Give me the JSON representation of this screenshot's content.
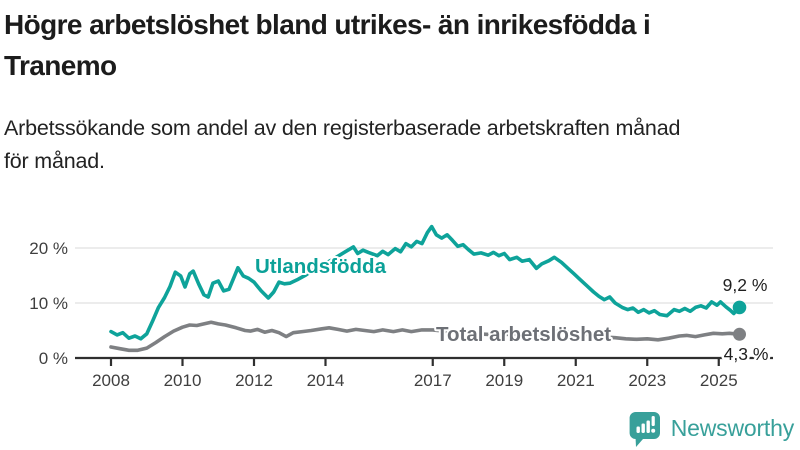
{
  "header": {
    "title_line1": "Högre arbetslöshet bland utrikes- än inrikesfödda i",
    "title_line2": "Tranemo",
    "subtitle_line1": "Arbetssökande som andel av den registerbaserade arbetskraften månad",
    "subtitle_line2": "för månad."
  },
  "chart_data": {
    "type": "line",
    "title": "Högre arbetslöshet bland utrikes- än inrikesfödda i Tranemo",
    "subtitle": "Arbetssökande som andel av den registerbaserade arbetskraften månad för månad.",
    "y_unit": "%",
    "xlim": [
      2007,
      2026
    ],
    "ylim": [
      0,
      25
    ],
    "grid": "horizontal",
    "legend_position": "inline-labels",
    "x_ticks": [
      2008,
      2010,
      2012,
      2014,
      2017,
      2019,
      2021,
      2023,
      2025
    ],
    "y_ticks": [
      {
        "value": 0,
        "label": "0 %"
      },
      {
        "value": 10,
        "label": "10 %"
      },
      {
        "value": 20,
        "label": "20 %"
      }
    ],
    "series": [
      {
        "name": "Utlandsfödda",
        "color": "#0ea39a",
        "label_color": "#0ba198",
        "end_label": "9,2 %",
        "end_value": 9.2,
        "points": [
          [
            2008.0,
            4.8
          ],
          [
            2008.17,
            4.2
          ],
          [
            2008.33,
            4.6
          ],
          [
            2008.5,
            3.6
          ],
          [
            2008.67,
            4.0
          ],
          [
            2008.83,
            3.5
          ],
          [
            2009.0,
            4.4
          ],
          [
            2009.17,
            6.8
          ],
          [
            2009.33,
            9.2
          ],
          [
            2009.5,
            11.0
          ],
          [
            2009.65,
            13.0
          ],
          [
            2009.8,
            15.6
          ],
          [
            2009.95,
            14.9
          ],
          [
            2010.07,
            12.9
          ],
          [
            2010.2,
            15.3
          ],
          [
            2010.3,
            15.8
          ],
          [
            2010.45,
            13.5
          ],
          [
            2010.6,
            11.5
          ],
          [
            2010.72,
            11.1
          ],
          [
            2010.85,
            13.6
          ],
          [
            2011.0,
            14.0
          ],
          [
            2011.15,
            12.2
          ],
          [
            2011.3,
            12.5
          ],
          [
            2011.45,
            14.8
          ],
          [
            2011.55,
            16.4
          ],
          [
            2011.7,
            14.9
          ],
          [
            2011.85,
            14.5
          ],
          [
            2012.0,
            13.8
          ],
          [
            2012.2,
            12.2
          ],
          [
            2012.4,
            10.9
          ],
          [
            2012.55,
            12.0
          ],
          [
            2012.7,
            13.8
          ],
          [
            2012.85,
            13.5
          ],
          [
            2013.0,
            13.6
          ],
          [
            2013.2,
            14.2
          ],
          [
            2013.45,
            15.1
          ],
          [
            2013.7,
            16.2
          ],
          [
            2014.0,
            17.2
          ],
          [
            2014.3,
            18.3
          ],
          [
            2014.55,
            19.3
          ],
          [
            2014.78,
            20.2
          ],
          [
            2014.9,
            19.0
          ],
          [
            2015.05,
            19.6
          ],
          [
            2015.2,
            19.2
          ],
          [
            2015.45,
            18.6
          ],
          [
            2015.6,
            19.4
          ],
          [
            2015.75,
            18.8
          ],
          [
            2015.95,
            19.9
          ],
          [
            2016.1,
            19.3
          ],
          [
            2016.25,
            20.8
          ],
          [
            2016.4,
            20.2
          ],
          [
            2016.55,
            21.2
          ],
          [
            2016.7,
            20.8
          ],
          [
            2016.85,
            22.8
          ],
          [
            2016.97,
            23.9
          ],
          [
            2017.1,
            22.4
          ],
          [
            2017.25,
            21.8
          ],
          [
            2017.4,
            22.4
          ],
          [
            2017.55,
            21.4
          ],
          [
            2017.7,
            20.3
          ],
          [
            2017.85,
            20.6
          ],
          [
            2018.0,
            19.7
          ],
          [
            2018.15,
            18.9
          ],
          [
            2018.35,
            19.1
          ],
          [
            2018.55,
            18.7
          ],
          [
            2018.7,
            19.2
          ],
          [
            2018.85,
            18.6
          ],
          [
            2019.0,
            19.0
          ],
          [
            2019.15,
            17.9
          ],
          [
            2019.35,
            18.3
          ],
          [
            2019.5,
            17.6
          ],
          [
            2019.7,
            17.9
          ],
          [
            2019.9,
            16.3
          ],
          [
            2020.05,
            17.1
          ],
          [
            2020.25,
            17.7
          ],
          [
            2020.4,
            18.3
          ],
          [
            2020.6,
            17.4
          ],
          [
            2020.8,
            16.2
          ],
          [
            2020.95,
            15.3
          ],
          [
            2021.1,
            14.4
          ],
          [
            2021.3,
            13.2
          ],
          [
            2021.5,
            12.0
          ],
          [
            2021.65,
            11.2
          ],
          [
            2021.8,
            10.6
          ],
          [
            2021.95,
            11.1
          ],
          [
            2022.1,
            10.0
          ],
          [
            2022.3,
            9.2
          ],
          [
            2022.45,
            8.8
          ],
          [
            2022.6,
            9.1
          ],
          [
            2022.75,
            8.3
          ],
          [
            2022.9,
            8.8
          ],
          [
            2023.05,
            8.2
          ],
          [
            2023.2,
            8.6
          ],
          [
            2023.35,
            7.9
          ],
          [
            2023.55,
            7.7
          ],
          [
            2023.75,
            8.8
          ],
          [
            2023.9,
            8.5
          ],
          [
            2024.05,
            9.0
          ],
          [
            2024.2,
            8.5
          ],
          [
            2024.35,
            9.2
          ],
          [
            2024.5,
            9.5
          ],
          [
            2024.65,
            9.1
          ],
          [
            2024.8,
            10.2
          ],
          [
            2024.95,
            9.6
          ],
          [
            2025.05,
            10.2
          ],
          [
            2025.2,
            9.3
          ],
          [
            2025.32,
            8.7
          ],
          [
            2025.42,
            8.1
          ],
          [
            2025.5,
            8.7
          ],
          [
            2025.58,
            9.2
          ]
        ]
      },
      {
        "name": "Total arbetslöshet",
        "color": "#7e8083",
        "label_color": "#6d7076",
        "end_label": "4,3 %",
        "end_value": 4.3,
        "points": [
          [
            2008.0,
            2.0
          ],
          [
            2008.25,
            1.7
          ],
          [
            2008.5,
            1.4
          ],
          [
            2008.75,
            1.4
          ],
          [
            2009.0,
            1.8
          ],
          [
            2009.25,
            2.8
          ],
          [
            2009.5,
            3.9
          ],
          [
            2009.75,
            4.9
          ],
          [
            2010.0,
            5.6
          ],
          [
            2010.2,
            6.0
          ],
          [
            2010.4,
            5.9
          ],
          [
            2010.6,
            6.2
          ],
          [
            2010.8,
            6.5
          ],
          [
            2011.0,
            6.2
          ],
          [
            2011.2,
            6.0
          ],
          [
            2011.5,
            5.5
          ],
          [
            2011.75,
            5.0
          ],
          [
            2011.9,
            4.9
          ],
          [
            2012.1,
            5.2
          ],
          [
            2012.3,
            4.7
          ],
          [
            2012.5,
            5.0
          ],
          [
            2012.7,
            4.6
          ],
          [
            2012.9,
            3.9
          ],
          [
            2013.1,
            4.6
          ],
          [
            2013.35,
            4.8
          ],
          [
            2013.6,
            5.0
          ],
          [
            2013.9,
            5.3
          ],
          [
            2014.1,
            5.5
          ],
          [
            2014.35,
            5.2
          ],
          [
            2014.6,
            4.9
          ],
          [
            2014.85,
            5.2
          ],
          [
            2015.1,
            5.0
          ],
          [
            2015.35,
            4.8
          ],
          [
            2015.6,
            5.1
          ],
          [
            2015.9,
            4.8
          ],
          [
            2016.15,
            5.1
          ],
          [
            2016.4,
            4.8
          ],
          [
            2016.7,
            5.1
          ],
          [
            2017.0,
            5.1
          ],
          [
            2017.3,
            4.9
          ],
          [
            2017.6,
            4.7
          ],
          [
            2017.9,
            4.6
          ],
          [
            2018.2,
            4.4
          ],
          [
            2018.5,
            4.3
          ],
          [
            2018.8,
            4.2
          ],
          [
            2019.1,
            4.3
          ],
          [
            2019.4,
            4.4
          ],
          [
            2019.7,
            4.1
          ],
          [
            2020.0,
            4.3
          ],
          [
            2020.3,
            4.7
          ],
          [
            2020.6,
            4.9
          ],
          [
            2020.9,
            4.6
          ],
          [
            2021.2,
            4.4
          ],
          [
            2021.5,
            4.1
          ],
          [
            2021.8,
            3.8
          ],
          [
            2022.1,
            3.7
          ],
          [
            2022.4,
            3.5
          ],
          [
            2022.7,
            3.4
          ],
          [
            2023.0,
            3.5
          ],
          [
            2023.3,
            3.3
          ],
          [
            2023.6,
            3.6
          ],
          [
            2023.9,
            4.0
          ],
          [
            2024.1,
            4.1
          ],
          [
            2024.35,
            3.9
          ],
          [
            2024.6,
            4.2
          ],
          [
            2024.85,
            4.5
          ],
          [
            2025.1,
            4.4
          ],
          [
            2025.3,
            4.5
          ],
          [
            2025.58,
            4.3
          ]
        ]
      }
    ]
  },
  "footer": {
    "brand": "Newsworthy",
    "brand_color": "#38a09a",
    "logo_icon": "bar-chart-speech-bubble-icon"
  }
}
